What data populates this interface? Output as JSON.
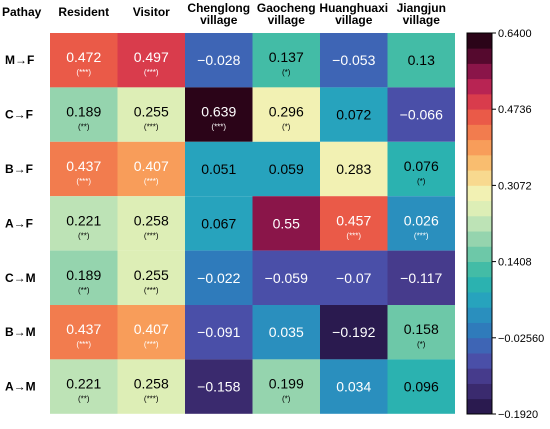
{
  "chart_data": {
    "type": "heatmap",
    "corner_label": "Pathay",
    "columns": [
      "Resident",
      "Visitor",
      "Chenglong village",
      "Gaocheng village",
      "Huanghuaxi village",
      "Jiangjun village"
    ],
    "rows": [
      "M→F",
      "C→F",
      "B→F",
      "A→F",
      "C→M",
      "B→M",
      "A→M"
    ],
    "cells": [
      [
        {
          "v": "0.472",
          "s": "(***)"
        },
        {
          "v": "0.497",
          "s": "(***)"
        },
        {
          "v": "−0.028",
          "s": ""
        },
        {
          "v": "0.137",
          "s": "(*)"
        },
        {
          "v": "−0.053",
          "s": ""
        },
        {
          "v": "0.13",
          "s": ""
        }
      ],
      [
        {
          "v": "0.189",
          "s": "(**)"
        },
        {
          "v": "0.255",
          "s": "(***)"
        },
        {
          "v": "0.639",
          "s": "(***)"
        },
        {
          "v": "0.296",
          "s": "(*)"
        },
        {
          "v": "0.072",
          "s": ""
        },
        {
          "v": "−0.066",
          "s": ""
        }
      ],
      [
        {
          "v": "0.437",
          "s": "(***)"
        },
        {
          "v": "0.407",
          "s": "(***)"
        },
        {
          "v": "0.051",
          "s": ""
        },
        {
          "v": "0.059",
          "s": ""
        },
        {
          "v": "0.283",
          "s": ""
        },
        {
          "v": "0.076",
          "s": "(*)"
        }
      ],
      [
        {
          "v": "0.221",
          "s": "(**)"
        },
        {
          "v": "0.258",
          "s": "(***)"
        },
        {
          "v": "0.067",
          "s": ""
        },
        {
          "v": "0.55",
          "s": ""
        },
        {
          "v": "0.457",
          "s": "(***)"
        },
        {
          "v": "0.026",
          "s": "(***)"
        }
      ],
      [
        {
          "v": "0.189",
          "s": "(**)"
        },
        {
          "v": "0.255",
          "s": "(***)"
        },
        {
          "v": "−0.022",
          "s": ""
        },
        {
          "v": "−0.059",
          "s": ""
        },
        {
          "v": "−0.07",
          "s": ""
        },
        {
          "v": "−0.117",
          "s": ""
        }
      ],
      [
        {
          "v": "0.437",
          "s": "(***)"
        },
        {
          "v": "0.407",
          "s": "(***)"
        },
        {
          "v": "−0.091",
          "s": ""
        },
        {
          "v": "0.035",
          "s": ""
        },
        {
          "v": "−0.192",
          "s": ""
        },
        {
          "v": "0.158",
          "s": "(*)"
        }
      ],
      [
        {
          "v": "0.221",
          "s": "(**)"
        },
        {
          "v": "0.258",
          "s": "(***)"
        },
        {
          "v": "−0.158",
          "s": ""
        },
        {
          "v": "0.199",
          "s": "(*)"
        },
        {
          "v": "0.034",
          "s": ""
        },
        {
          "v": "0.096",
          "s": ""
        }
      ]
    ],
    "colorbar": {
      "min": -0.192,
      "max": 0.64,
      "ticks": [
        {
          "value": 0.64,
          "label": "0.6400"
        },
        {
          "value": 0.4736,
          "label": "0.4736"
        },
        {
          "value": 0.3072,
          "label": "0.3072"
        },
        {
          "value": 0.1408,
          "label": "0.1408"
        },
        {
          "value": -0.0256,
          "label": "−0.02560"
        },
        {
          "value": -0.192,
          "label": "−0.1920"
        }
      ],
      "colors_bottom_to_top": [
        "#2a1a4f",
        "#3a2a6e",
        "#463b8c",
        "#4a4fa8",
        "#3e65b5",
        "#2f7bbb",
        "#2a8fbe",
        "#27a3bd",
        "#2bb2b0",
        "#43bca6",
        "#6dc8a8",
        "#95d4ae",
        "#bde3b6",
        "#ddeeb6",
        "#f2f1b3",
        "#f8d98f",
        "#f9bd6f",
        "#f89d5a",
        "#f27c4e",
        "#ea5a48",
        "#d93c4c",
        "#b82453",
        "#8a1549",
        "#55092e",
        "#2b0418"
      ]
    }
  }
}
